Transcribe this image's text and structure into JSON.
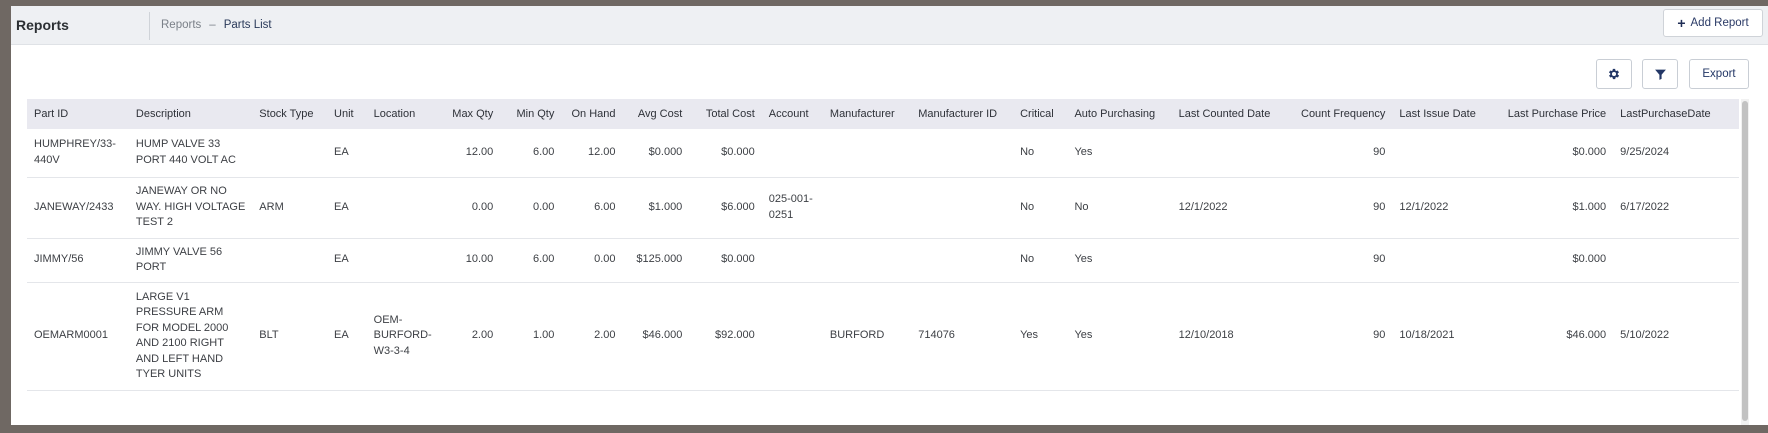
{
  "header": {
    "title": "Reports",
    "breadcrumb": {
      "root": "Reports",
      "separator": "–",
      "current": "Parts List"
    },
    "add_report_label": "Add Report"
  },
  "toolbar": {
    "settings_icon": "gear-icon",
    "filter_icon": "filter-icon",
    "export_label": "Export"
  },
  "table": {
    "columns": [
      "Part ID",
      "Description",
      "Stock Type",
      "Unit",
      "Location",
      "Max Qty",
      "Min Qty",
      "On Hand",
      "Avg Cost",
      "Total Cost",
      "Account",
      "Manufacturer",
      "Manufacturer ID",
      "Critical",
      "Auto Purchasing",
      "Last Counted Date",
      "Count Frequency",
      "Last Issue Date",
      "Last Purchase Price",
      "LastPurchaseDate"
    ],
    "rows": [
      [
        "HUMPHREY/33-440V",
        "HUMP VALVE 33 PORT 440 VOLT AC",
        "",
        "EA",
        "",
        "12.00",
        "6.00",
        "12.00",
        "$0.000",
        "$0.000",
        "",
        "",
        "",
        "No",
        "Yes",
        "",
        "90",
        "",
        "$0.000",
        "9/25/2024"
      ],
      [
        "JANEWAY/2433",
        "JANEWAY OR NO WAY. HIGH VOLTAGE TEST 2",
        "ARM",
        "EA",
        "",
        "0.00",
        "0.00",
        "6.00",
        "$1.000",
        "$6.000",
        "025-001-0251",
        "",
        "",
        "No",
        "No",
        "12/1/2022",
        "90",
        "12/1/2022",
        "$1.000",
        "6/17/2022"
      ],
      [
        "JIMMY/56",
        "JIMMY VALVE 56 PORT",
        "",
        "EA",
        "",
        "10.00",
        "6.00",
        "0.00",
        "$125.000",
        "$0.000",
        "",
        "",
        "",
        "No",
        "Yes",
        "",
        "90",
        "",
        "$0.000",
        ""
      ],
      [
        "OEMARM0001",
        "LARGE V1 PRESSURE ARM FOR MODEL 2000 AND 2100 RIGHT AND LEFT HAND TYER UNITS",
        "BLT",
        "EA",
        "OEM-BURFORD-W3-3-4",
        "2.00",
        "1.00",
        "2.00",
        "$46.000",
        "$92.000",
        "",
        "BURFORD",
        "714076",
        "Yes",
        "Yes",
        "12/10/2018",
        "90",
        "10/18/2021",
        "$46.000",
        "5/10/2022"
      ]
    ]
  }
}
